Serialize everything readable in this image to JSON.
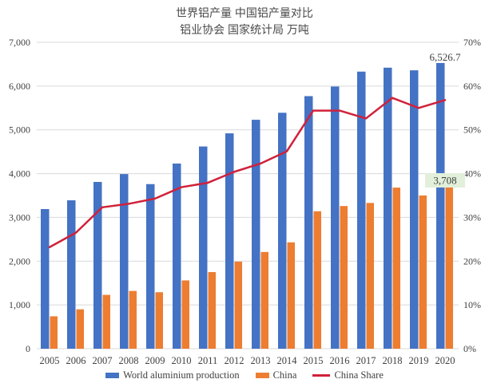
{
  "title": "世界铝产量 中国铝产量对比",
  "subtitle": "铝业协会 国家统计局 万吨",
  "colors": {
    "world_bar": "#4472C4",
    "china_bar": "#ED7D31",
    "share_line": "#D0213A",
    "gridline": "#D9D9D9",
    "axis_text": "#404040",
    "label_box_bg": "#E2EFDA"
  },
  "legend": [
    {
      "label": "World aluminium production",
      "color": "#4472C4",
      "type": "bar"
    },
    {
      "label": "China",
      "color": "#ED7D31",
      "type": "bar"
    },
    {
      "label": "China Share",
      "color": "#D0213A",
      "type": "line"
    }
  ],
  "chart_data": {
    "type": "bar",
    "subtype": "grouped bars with secondary-axis line (combo chart)",
    "title": "世界铝产量 中国铝产量对比",
    "subtitle": "铝业协会 国家统计局 万吨",
    "categories": [
      "2005",
      "2006",
      "2007",
      "2008",
      "2009",
      "2010",
      "2011",
      "2012",
      "2013",
      "2014",
      "2015",
      "2016",
      "2017",
      "2018",
      "2019",
      "2020"
    ],
    "series": [
      {
        "name": "World aluminium production",
        "type": "bar",
        "axis": "left",
        "color": "#4472C4",
        "values": [
          3190,
          3390,
          3810,
          3990,
          3760,
          4230,
          4620,
          4920,
          5230,
          5390,
          5770,
          5990,
          6330,
          6420,
          6360,
          6526.7
        ]
      },
      {
        "name": "China",
        "type": "bar",
        "axis": "left",
        "color": "#ED7D31",
        "values": [
          740,
          900,
          1230,
          1320,
          1290,
          1560,
          1750,
          1990,
          2210,
          2430,
          3140,
          3260,
          3330,
          3680,
          3500,
          3708
        ]
      },
      {
        "name": "China Share",
        "type": "line",
        "axis": "right",
        "color": "#D0213A",
        "values_percent": [
          23.2,
          26.5,
          32.3,
          33.1,
          34.3,
          36.9,
          37.9,
          40.4,
          42.3,
          45.1,
          54.4,
          54.4,
          52.6,
          57.3,
          55.0,
          56.8
        ]
      }
    ],
    "left_axis": {
      "min": 0,
      "max": 7000,
      "step": 1000,
      "tick_labels": [
        "0",
        "1,000",
        "2,000",
        "3,000",
        "4,000",
        "5,000",
        "6,000",
        "7,000"
      ]
    },
    "right_axis": {
      "min": 0,
      "max": 70,
      "step": 10,
      "tick_labels": [
        "0%",
        "10%",
        "20%",
        "30%",
        "40%",
        "50%",
        "60%",
        "70%"
      ]
    },
    "data_labels": [
      {
        "series": "World aluminium production",
        "category": "2020",
        "text": "6,526.7"
      },
      {
        "series": "China",
        "category": "2020",
        "text": "3,708",
        "highlight_bg": "#E2EFDA"
      }
    ],
    "grid": "horizontal",
    "legend_position": "bottom"
  }
}
